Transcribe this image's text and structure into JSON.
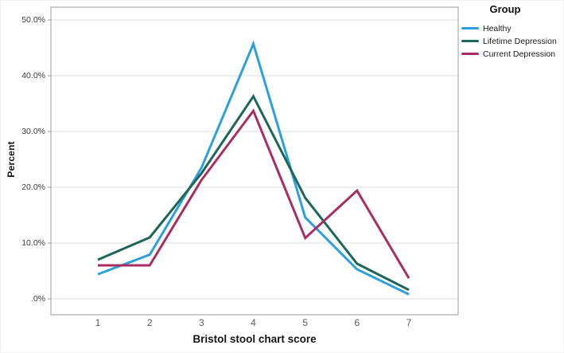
{
  "chart_data": {
    "type": "line",
    "title": "",
    "xlabel": "Bristol stool chart score",
    "ylabel": "Percent",
    "legend_title": "Group",
    "legend_position": "top-right-outside",
    "grid": "horizontal",
    "categories": [
      "1",
      "2",
      "3",
      "4",
      "5",
      "6",
      "7"
    ],
    "y_ticks": [
      {
        "value": 0,
        "label": ".0%"
      },
      {
        "value": 10,
        "label": "10.0%"
      },
      {
        "value": 20,
        "label": "20.0%"
      },
      {
        "value": 30,
        "label": "30.0%"
      },
      {
        "value": 40,
        "label": "40.0%"
      },
      {
        "value": 50,
        "label": "50.0%"
      }
    ],
    "ylim": [
      -2.9,
      52.3
    ],
    "series": [
      {
        "name": "Healthy",
        "color": "#2ca0dc",
        "values": [
          4.4,
          7.9,
          23.5,
          45.7,
          14.6,
          5.3,
          0.8
        ]
      },
      {
        "name": "Lifetime Depression",
        "color": "#1e655a",
        "values": [
          7.0,
          11.0,
          22.5,
          36.3,
          18.1,
          6.3,
          1.6
        ]
      },
      {
        "name": "Current Depression",
        "color": "#a92c62",
        "values": [
          6.0,
          6.0,
          21.3,
          33.7,
          10.9,
          19.4,
          3.7
        ]
      }
    ]
  },
  "colors": {
    "background": "#ffffff",
    "gridline": "#dcdcdc",
    "frame": "#9b9b9b",
    "y_tick_label": "#3a3a3a",
    "x_tick_label": "#5a5a5a",
    "axis_title": "#151515"
  }
}
